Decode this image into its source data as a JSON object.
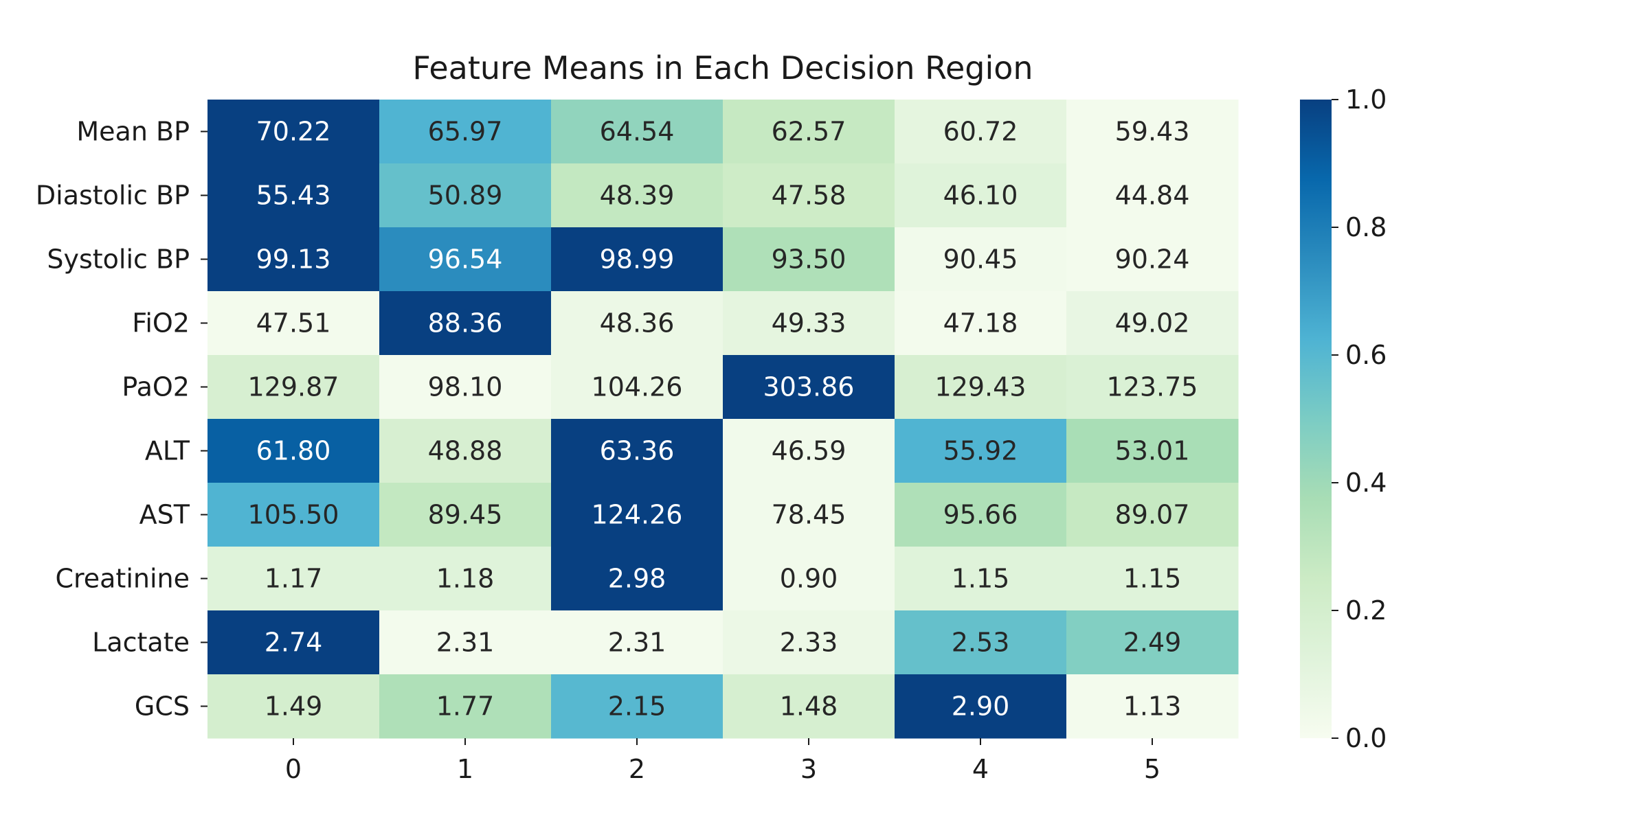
{
  "chart_data": {
    "type": "heatmap",
    "title": "Feature Means in Each Decision Region",
    "xlabel": "",
    "ylabel": "",
    "columns": [
      "0",
      "1",
      "2",
      "3",
      "4",
      "5"
    ],
    "rows": [
      "Mean BP",
      "Diastolic BP",
      "Systolic BP",
      "FiO2",
      "PaO2",
      "ALT",
      "AST",
      "Creatinine",
      "Lactate",
      "GCS"
    ],
    "values": [
      [
        70.22,
        65.97,
        64.54,
        62.57,
        60.72,
        59.43
      ],
      [
        55.43,
        50.89,
        48.39,
        47.58,
        46.1,
        44.84
      ],
      [
        99.13,
        96.54,
        98.99,
        93.5,
        90.45,
        90.24
      ],
      [
        47.51,
        88.36,
        48.36,
        49.33,
        47.18,
        49.02
      ],
      [
        129.87,
        98.1,
        104.26,
        303.86,
        129.43,
        123.75
      ],
      [
        61.8,
        48.88,
        63.36,
        46.59,
        55.92,
        53.01
      ],
      [
        105.5,
        89.45,
        124.26,
        78.45,
        95.66,
        89.07
      ],
      [
        1.17,
        1.18,
        2.98,
        0.9,
        1.15,
        1.15
      ],
      [
        2.74,
        2.31,
        2.31,
        2.33,
        2.53,
        2.49
      ],
      [
        1.49,
        1.77,
        2.15,
        1.48,
        2.9,
        1.13
      ]
    ],
    "normalized": [
      [
        1.0,
        0.62,
        0.44,
        0.27,
        0.1,
        0.02
      ],
      [
        1.0,
        0.56,
        0.28,
        0.24,
        0.13,
        0.02
      ],
      [
        1.0,
        0.75,
        1.0,
        0.35,
        0.03,
        0.02
      ],
      [
        0.02,
        1.0,
        0.06,
        0.1,
        0.02,
        0.08
      ],
      [
        0.18,
        0.02,
        0.06,
        1.0,
        0.18,
        0.16
      ],
      [
        0.9,
        0.18,
        1.0,
        0.03,
        0.62,
        0.37
      ],
      [
        0.62,
        0.28,
        1.0,
        0.03,
        0.35,
        0.27
      ],
      [
        0.13,
        0.13,
        1.0,
        0.03,
        0.13,
        0.13
      ],
      [
        1.0,
        0.02,
        0.02,
        0.06,
        0.56,
        0.48
      ],
      [
        0.2,
        0.35,
        0.6,
        0.19,
        1.0,
        0.02
      ]
    ],
    "colormap": "GnBu",
    "colorbar": {
      "min": 0.0,
      "max": 1.0,
      "ticks": [
        "0.0",
        "0.2",
        "0.4",
        "0.6",
        "0.8",
        "1.0"
      ]
    },
    "grid": false,
    "legend": "colorbar-right"
  }
}
